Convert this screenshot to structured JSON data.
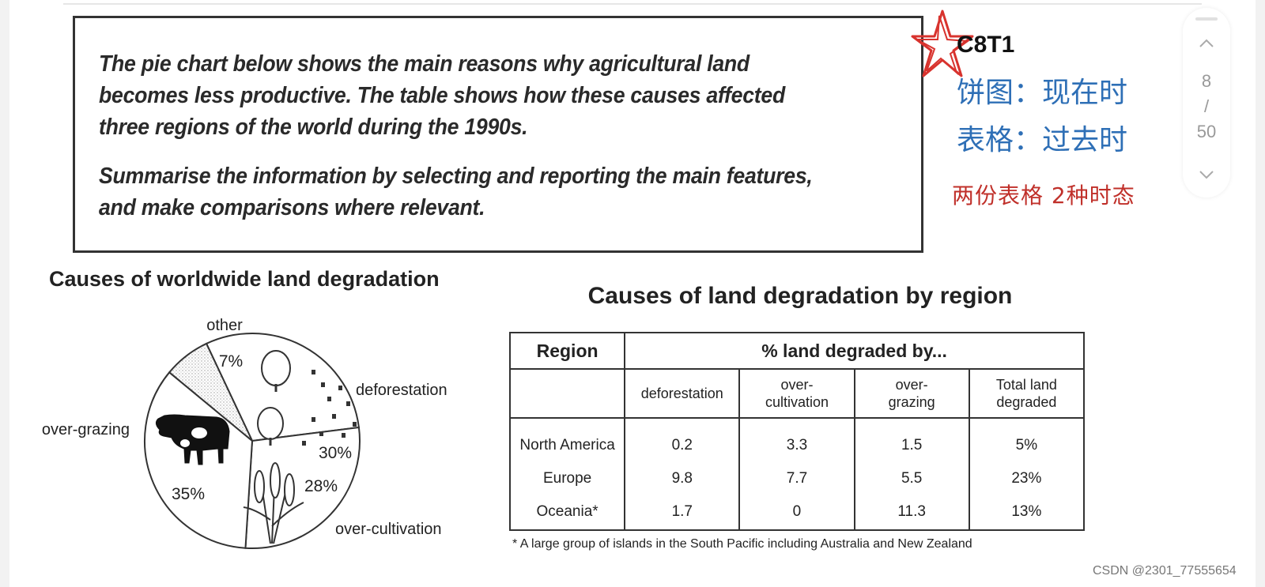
{
  "prompt": {
    "paragraph1": "The pie chart below shows the main reasons why agricultural land becomes less productive. The table shows how these causes affected three regions of the world during the 1990s.",
    "paragraph2": "Summarise the information by selecting and reporting the main features, and make comparisons where relevant."
  },
  "notes": {
    "code": "C8T1",
    "line1": "饼图：现在时",
    "line2": "表格：过去时",
    "line3": "两份表格 2种时态",
    "line3_color": "#c0302a",
    "accent_color": "#2e6fb6"
  },
  "pager": {
    "current": "8",
    "sep": "/",
    "total": "50"
  },
  "chart_data": [
    {
      "type": "pie",
      "title": "Causes of worldwide land degradation",
      "slices": [
        {
          "label": "deforestation",
          "value": 30,
          "value_label": "30%"
        },
        {
          "label": "over-cultivation",
          "value": 28,
          "value_label": "28%"
        },
        {
          "label": "over-grazing",
          "value": 35,
          "value_label": "35%"
        },
        {
          "label": "other",
          "value": 7,
          "value_label": "7%"
        }
      ]
    },
    {
      "type": "table",
      "title": "Causes of land degradation by region",
      "header_region": "Region",
      "header_group": "% land degraded by...",
      "columns": [
        {
          "line1": "deforestation",
          "line2": ""
        },
        {
          "line1": "over-",
          "line2": "cultivation"
        },
        {
          "line1": "over-",
          "line2": "grazing"
        },
        {
          "line1": "Total land",
          "line2": "degraded"
        }
      ],
      "rows": [
        {
          "region": "North America",
          "values": [
            "0.2",
            "3.3",
            "1.5",
            "5%"
          ]
        },
        {
          "region": "Europe",
          "values": [
            "9.8",
            "7.7",
            "5.5",
            "23%"
          ]
        },
        {
          "region": "Oceania*",
          "values": [
            "1.7",
            "0",
            "11.3",
            "13%"
          ]
        }
      ],
      "footnote": "* A large group of islands in the South Pacific including Australia and New Zealand"
    }
  ],
  "watermark": "CSDN @2301_77555654"
}
